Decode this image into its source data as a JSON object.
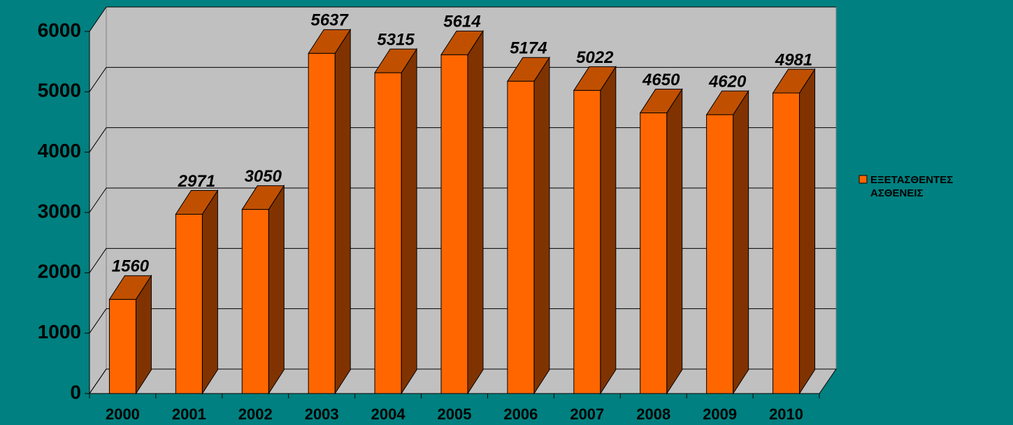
{
  "chart_data": {
    "type": "bar3d",
    "categories": [
      "2000",
      "2001",
      "2002",
      "2003",
      "2004",
      "2005",
      "2006",
      "2007",
      "2008",
      "2009",
      "2010"
    ],
    "series": [
      {
        "name": "ΕΞΕΤΑΣΘΕΝΤΕΣ ΑΣΘΕΝΕΙΣ",
        "color": "#ff6600",
        "values": [
          1560,
          2971,
          3050,
          5637,
          5315,
          5614,
          5174,
          5022,
          4650,
          4620,
          4981
        ]
      }
    ],
    "ylim": [
      0,
      6000
    ],
    "yticks": [
      0,
      1000,
      2000,
      3000,
      4000,
      5000,
      6000
    ],
    "grid": true,
    "legend": "right"
  }
}
